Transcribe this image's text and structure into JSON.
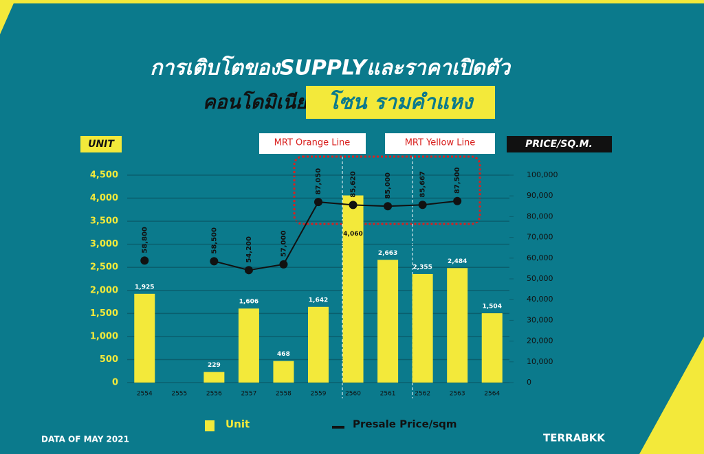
{
  "chart_data": {
    "type": "bar",
    "title": "การเติบโตของSUPPLYและราคาเปิดตัว",
    "subtitle": "คอนโดมิเนียม",
    "subtitle_highlight": "โซน รามคำแหง",
    "y_label": "UNIT",
    "y2_label": "PRICE/SQ.M.",
    "annotations": [
      "MRT Orange Line",
      "MRT Yellow Line"
    ],
    "footer": "DATA OF MAY 2021",
    "brand": "TERRABKK",
    "categories": [
      "2554",
      "2555",
      "2556",
      "2557",
      "2558",
      "2559",
      "2560",
      "2561",
      "2562",
      "2563",
      "2564"
    ],
    "series": [
      {
        "name": "Unit",
        "type": "bar",
        "color": "#f3e93a",
        "values": [
          1925,
          null,
          229,
          1606,
          468,
          1642,
          4060,
          2663,
          2355,
          2484,
          1504
        ],
        "value_labels": [
          "1,925",
          null,
          "229",
          "1,606",
          "468",
          "1,642",
          "4,060",
          "2,663",
          "2,355",
          "2,484",
          "1,504"
        ]
      },
      {
        "name": "Presale Price/sqm",
        "type": "line",
        "axis": "y2",
        "color": "#111111",
        "values": [
          58800,
          null,
          58500,
          54200,
          57000,
          87050,
          85620,
          85000,
          85667,
          87500,
          null
        ],
        "value_labels": [
          "58,800",
          null,
          "58,500",
          "54,200",
          "57,000",
          "87,050",
          "85,620",
          "85,000",
          "85,667",
          "87,500",
          null
        ]
      }
    ],
    "ylim": [
      0,
      4500
    ],
    "yticks": [
      0,
      500,
      {
        "value": 1000,
        "label": "1,000"
      },
      {
        "value": 1500,
        "label": "1,500"
      },
      {
        "value": 2000,
        "label": "2,000"
      },
      {
        "value": 2500,
        "label": "2,500"
      },
      {
        "value": 3000,
        "label": "3,000"
      },
      {
        "value": 3500,
        "label": "3,500"
      },
      {
        "value": 4000,
        "label": "4,000"
      },
      {
        "value": 4500,
        "label": "4,500"
      }
    ],
    "y2lim": [
      0,
      100000
    ],
    "y2ticks": [
      0,
      {
        "value": 10000,
        "label": "10,000"
      },
      {
        "value": 20000,
        "label": "20,000"
      },
      {
        "value": 30000,
        "label": "30,000"
      },
      {
        "value": 40000,
        "label": "40,000"
      },
      {
        "value": 50000,
        "label": "50,000"
      },
      {
        "value": 60000,
        "label": "60,000"
      },
      {
        "value": 70000,
        "label": "70,000"
      },
      {
        "value": 80000,
        "label": "80,000"
      },
      {
        "value": 90000,
        "label": "90,000"
      },
      {
        "value": 100000,
        "label": "100,000"
      }
    ],
    "grid": true
  }
}
